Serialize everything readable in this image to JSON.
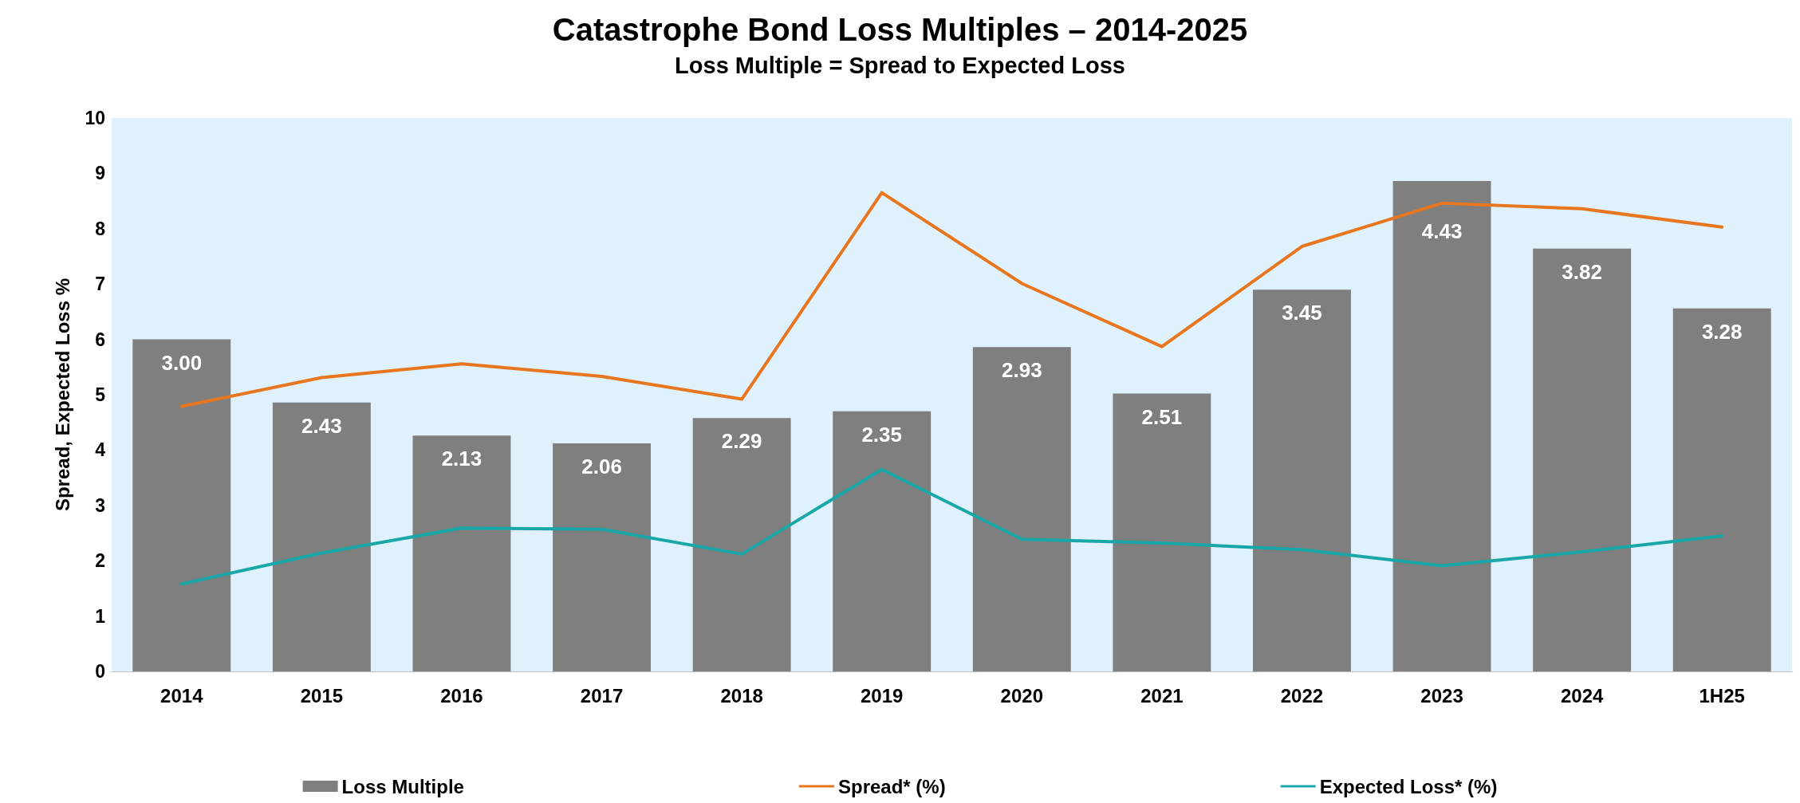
{
  "chart_data": {
    "type": "bar",
    "title": "Catastrophe Bond Loss Multiples – 2014-2025",
    "subtitle": "Loss Multiple = Spread to Expected Loss",
    "ylabel": "Spread, Expected Loss %",
    "categories": [
      "2014",
      "2015",
      "2016",
      "2017",
      "2018",
      "2019",
      "2020",
      "2021",
      "2022",
      "2023",
      "2024",
      "1H25"
    ],
    "series": [
      {
        "name": "Loss Multiple",
        "axis": "y2",
        "color": "#7f7f7f",
        "values": [
          3.0,
          2.43,
          2.13,
          2.06,
          2.29,
          2.35,
          2.93,
          2.51,
          3.45,
          4.43,
          3.82,
          3.28
        ],
        "value_labels": [
          "3.00",
          "2.43",
          "2.13",
          "2.06",
          "2.29",
          "2.35",
          "2.93",
          "2.51",
          "3.45",
          "4.43",
          "3.82",
          "3.28"
        ]
      },
      {
        "name": "Spread* (%)",
        "type": "line",
        "color": "#e8761e",
        "values": [
          4.79,
          5.31,
          5.56,
          5.33,
          4.92,
          8.65,
          7.01,
          5.87,
          7.68,
          8.46,
          8.36,
          8.03
        ]
      },
      {
        "name": "Expected Loss* (%)",
        "type": "line",
        "color": "#1aa7a8",
        "values": [
          1.58,
          2.14,
          2.59,
          2.57,
          2.12,
          3.65,
          2.39,
          2.32,
          2.2,
          1.91,
          2.16,
          2.45
        ]
      }
    ],
    "ylim": [
      0,
      10
    ],
    "yticks": [
      0,
      1,
      2,
      3,
      4,
      5,
      6,
      7,
      8,
      9,
      10
    ],
    "y2lim": [
      0,
      5
    ],
    "grid": false,
    "legend": "bottom",
    "marker": "none",
    "line_style": "solid"
  }
}
